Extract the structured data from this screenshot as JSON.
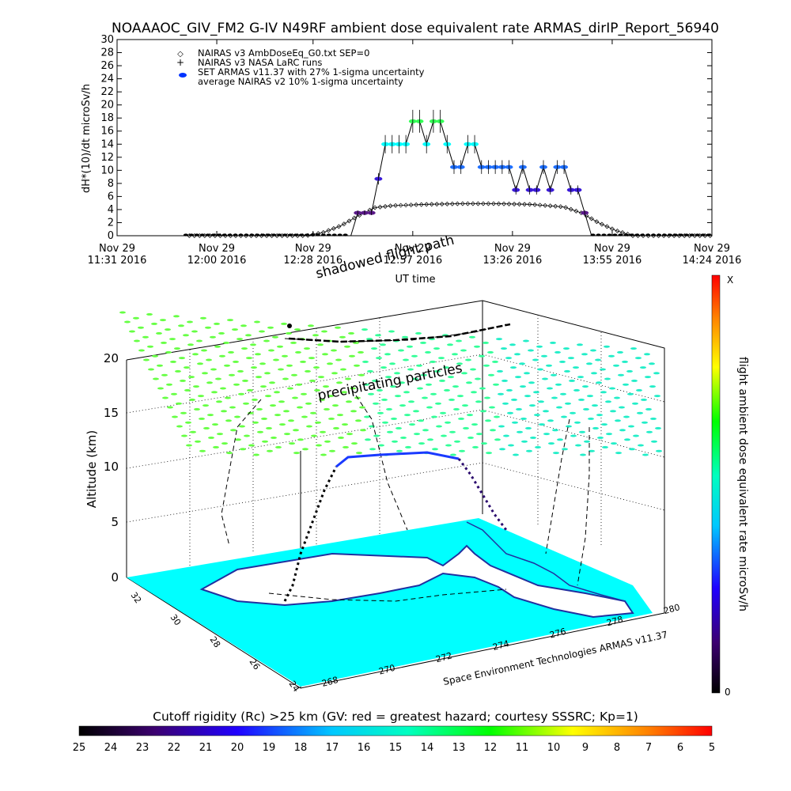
{
  "title": "NOAAAOC_GIV_FM2 G-IV   N49RF  ambient dose equivalent rate ARMAS_dirIP_Report_56940",
  "chart_data": [
    {
      "type": "line",
      "ylabel": "dH*(10)/dt microSv/h",
      "xlabel": "UT time",
      "ylim": [
        0,
        30
      ],
      "yticks": [
        0,
        2,
        4,
        6,
        8,
        10,
        12,
        14,
        16,
        18,
        20,
        22,
        24,
        26,
        28,
        30
      ],
      "xlim": [
        0,
        173
      ],
      "xtick_values": [
        0,
        29,
        57,
        86,
        115,
        144,
        173
      ],
      "xtick_labels": [
        [
          "Nov 29",
          "11:31 2016"
        ],
        [
          "Nov 29",
          "12:00 2016"
        ],
        [
          "Nov 29",
          "12:28 2016"
        ],
        [
          "Nov 29",
          "12:57 2016"
        ],
        [
          "Nov 29",
          "13:26 2016"
        ],
        [
          "Nov 29",
          "13:55 2016"
        ],
        [
          "Nov 29",
          "14:24 2016"
        ]
      ],
      "legend": [
        "NAIRAS v3 AmbDoseEq_G0.txt SEP=0",
        "NAIRAS v3 NASA LaRC runs",
        "SET ARMAS v11.37 with 27% 1-sigma uncertainty",
        "average NAIRAS v2 10% 1-sigma uncertainty"
      ],
      "legend_position": "top-left",
      "series": [
        {
          "name": "SET ARMAS v11.37 with 27% 1-sigma uncertainty",
          "x": [
            70,
            72,
            74,
            76,
            78,
            80,
            82,
            84,
            86,
            88,
            90,
            92,
            94,
            96,
            98,
            100,
            102,
            104,
            106,
            108,
            110,
            112,
            114,
            116,
            118,
            120,
            122,
            124,
            126,
            128,
            130,
            132,
            134,
            136
          ],
          "y": [
            3.5,
            3.5,
            3.5,
            8.7,
            14,
            14,
            14,
            14,
            17.5,
            17.5,
            14,
            17.5,
            17.5,
            14,
            10.5,
            10.5,
            14,
            14,
            10.5,
            10.5,
            10.5,
            10.5,
            10.5,
            7,
            10.5,
            7,
            7,
            10.5,
            7,
            10.5,
            10.5,
            7,
            7,
            3.5
          ]
        },
        {
          "name": "NAIRAS v3 AmbDoseEq_G0.txt SEP=0",
          "x": [
            0,
            10,
            20,
            30,
            40,
            50,
            55,
            60,
            65,
            70,
            75,
            80,
            90,
            100,
            110,
            120,
            125,
            130,
            135,
            140,
            145,
            150,
            160,
            173
          ],
          "y": [
            0,
            0,
            0,
            0,
            0,
            0,
            0,
            0.5,
            1.5,
            3,
            4.3,
            4.6,
            4.8,
            4.9,
            4.9,
            4.8,
            4.6,
            4.4,
            3.5,
            2,
            0.8,
            0,
            0,
            0
          ]
        }
      ]
    },
    {
      "type": "scatter",
      "zlabel": "Altitude (km)",
      "zticks": [
        0,
        5,
        10,
        15,
        20
      ],
      "lat_ticks": [
        32,
        30,
        28,
        26,
        24
      ],
      "lon_ticks": [
        268,
        270,
        272,
        274,
        276,
        278,
        280
      ],
      "annotations": [
        "shadowed flight path",
        "precipitating particles"
      ],
      "credit": "Space Environment Technologies ARMAS v11.37",
      "colorbar_label": "flight ambient dose equivalent rate microSv/h",
      "colorbar_top": "X",
      "colorbar_bottom": "0"
    }
  ],
  "rigidity_bar": {
    "label": "Cutoff rigidity (Rc) >25 km (GV: red = greatest hazard; courtesy SSSRC; Kp=1)",
    "ticks": [
      "25",
      "24",
      "23",
      "22",
      "21",
      "20",
      "19",
      "18",
      "17",
      "16",
      "15",
      "14",
      "13",
      "12",
      "11",
      "10",
      "9",
      "8",
      "7",
      "6",
      "5"
    ]
  },
  "colors": {
    "cyan": "#00ffff",
    "green": "#55ff55",
    "purple": "#4b0082",
    "blue": "#0033ff",
    "dark": "#000000"
  }
}
